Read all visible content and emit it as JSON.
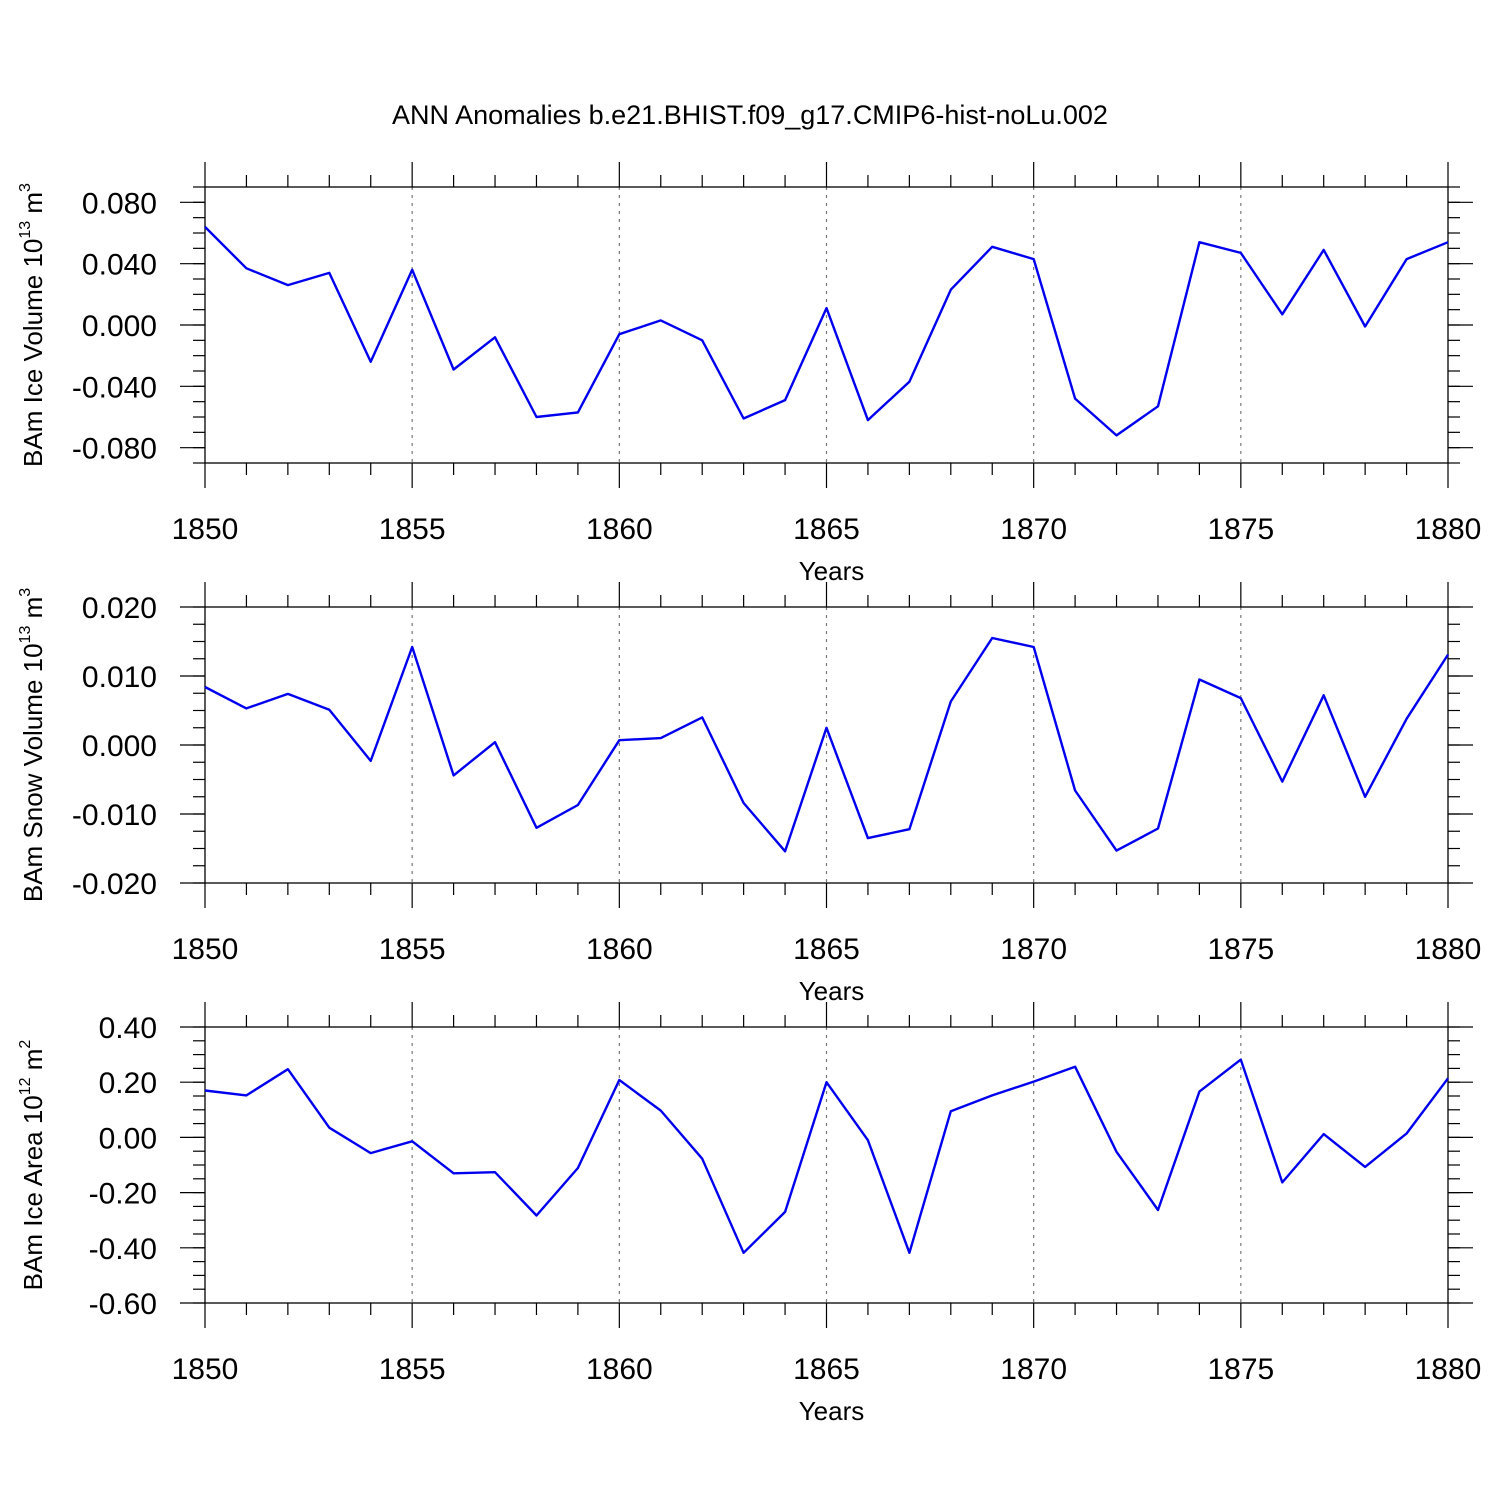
{
  "title": "ANN Anomalies b.e21.BHIST.f09_g17.CMIP6-hist-noLu.002",
  "line_color": "#0000ee",
  "chart_data": [
    {
      "type": "line",
      "ylabel_prefix": "BAm Ice Volume 10",
      "ylabel_exp": "13",
      "ylabel_unit": " m",
      "ylabel_unit_exp": "3",
      "xlabel": "Years",
      "xlim": [
        1850,
        1880
      ],
      "ylim": [
        -0.09,
        0.09
      ],
      "x_ticks": [
        "1850",
        "1855",
        "1860",
        "1865",
        "1870",
        "1875",
        "1880"
      ],
      "y_ticks": [
        {
          "v": 0.08,
          "label": "0.080"
        },
        {
          "v": 0.04,
          "label": "0.040"
        },
        {
          "v": 0.0,
          "label": "0.000"
        },
        {
          "v": -0.04,
          "label": "-0.040"
        },
        {
          "v": -0.08,
          "label": "-0.080"
        }
      ],
      "y_minor_step": 0.01,
      "x": [
        1850,
        1851,
        1852,
        1853,
        1854,
        1855,
        1856,
        1857,
        1858,
        1859,
        1860,
        1861,
        1862,
        1863,
        1864,
        1865,
        1866,
        1867,
        1868,
        1869,
        1870,
        1871,
        1872,
        1873,
        1874,
        1875,
        1876,
        1877,
        1878,
        1879,
        1880
      ],
      "values": [
        0.064,
        0.037,
        0.026,
        0.034,
        -0.024,
        0.036,
        -0.029,
        -0.008,
        -0.06,
        -0.057,
        -0.006,
        0.003,
        -0.01,
        -0.061,
        -0.049,
        0.011,
        -0.062,
        -0.037,
        0.023,
        0.051,
        0.043,
        -0.048,
        -0.072,
        -0.053,
        0.054,
        0.047,
        0.007,
        0.049,
        -0.001,
        0.043,
        0.054
      ]
    },
    {
      "type": "line",
      "ylabel_prefix": "BAm Snow Volume 10",
      "ylabel_exp": "13",
      "ylabel_unit": " m",
      "ylabel_unit_exp": "3",
      "xlabel": "Years",
      "xlim": [
        1850,
        1880
      ],
      "ylim": [
        -0.02,
        0.02
      ],
      "x_ticks": [
        "1850",
        "1855",
        "1860",
        "1865",
        "1870",
        "1875",
        "1880"
      ],
      "y_ticks": [
        {
          "v": 0.02,
          "label": "0.020"
        },
        {
          "v": 0.01,
          "label": "0.010"
        },
        {
          "v": 0.0,
          "label": "0.000"
        },
        {
          "v": -0.01,
          "label": "-0.010"
        },
        {
          "v": -0.02,
          "label": "-0.020"
        }
      ],
      "y_minor_step": 0.0025,
      "x": [
        1850,
        1851,
        1852,
        1853,
        1854,
        1855,
        1856,
        1857,
        1858,
        1859,
        1860,
        1861,
        1862,
        1863,
        1864,
        1865,
        1866,
        1867,
        1868,
        1869,
        1870,
        1871,
        1872,
        1873,
        1874,
        1875,
        1876,
        1877,
        1878,
        1879,
        1880
      ],
      "values": [
        0.0084,
        0.0053,
        0.0074,
        0.0051,
        -0.0023,
        0.0142,
        -0.0044,
        0.0004,
        -0.012,
        -0.0087,
        0.0007,
        0.001,
        0.004,
        -0.0084,
        -0.0154,
        0.0025,
        -0.0135,
        -0.0122,
        0.0063,
        0.0155,
        0.0142,
        -0.0066,
        -0.0153,
        -0.0121,
        0.0095,
        0.0068,
        -0.0053,
        0.0072,
        -0.0075,
        0.0038,
        0.0131
      ]
    },
    {
      "type": "line",
      "ylabel_prefix": "BAm Ice Area 10",
      "ylabel_exp": "12",
      "ylabel_unit": " m",
      "ylabel_unit_exp": "2",
      "xlabel": "Years",
      "xlim": [
        1850,
        1880
      ],
      "ylim": [
        -0.6,
        0.4
      ],
      "x_ticks": [
        "1850",
        "1855",
        "1860",
        "1865",
        "1870",
        "1875",
        "1880"
      ],
      "y_ticks": [
        {
          "v": 0.4,
          "label": "0.40"
        },
        {
          "v": 0.2,
          "label": "0.20"
        },
        {
          "v": 0.0,
          "label": "0.00"
        },
        {
          "v": -0.2,
          "label": "-0.20"
        },
        {
          "v": -0.4,
          "label": "-0.40"
        },
        {
          "v": -0.6,
          "label": "-0.60"
        }
      ],
      "y_minor_step": 0.05,
      "x": [
        1850,
        1851,
        1852,
        1853,
        1854,
        1855,
        1856,
        1857,
        1858,
        1859,
        1860,
        1861,
        1862,
        1863,
        1864,
        1865,
        1866,
        1867,
        1868,
        1869,
        1870,
        1871,
        1872,
        1873,
        1874,
        1875,
        1876,
        1877,
        1878,
        1879,
        1880
      ],
      "values": [
        0.17,
        0.152,
        0.247,
        0.035,
        -0.057,
        -0.014,
        -0.13,
        -0.126,
        -0.283,
        -0.111,
        0.208,
        0.097,
        -0.077,
        -0.418,
        -0.27,
        0.2,
        -0.01,
        -0.418,
        0.095,
        0.152,
        0.202,
        0.256,
        -0.052,
        -0.263,
        0.166,
        0.282,
        -0.163,
        0.012,
        -0.107,
        0.014,
        0.214
      ]
    }
  ]
}
